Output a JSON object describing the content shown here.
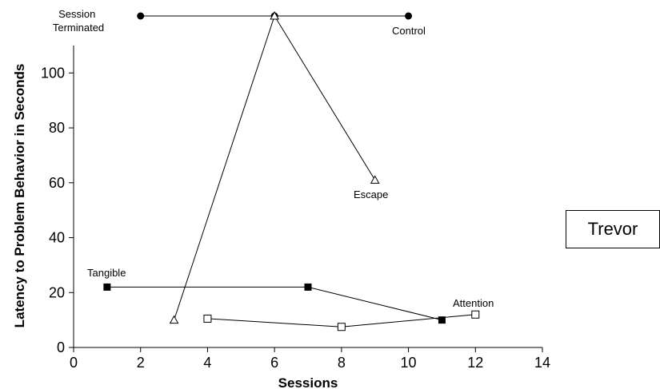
{
  "participant_label": "Trevor",
  "chart_data": {
    "type": "line",
    "xlabel": "Sessions",
    "ylabel": "Latency to Problem Behavior in Seconds",
    "xlim": [
      0,
      14
    ],
    "ylim": [
      0,
      110
    ],
    "xticks": [
      0,
      2,
      4,
      6,
      8,
      10,
      12,
      14
    ],
    "yticks": [
      0,
      20,
      40,
      60,
      80,
      100
    ],
    "grid": false,
    "legend": "none",
    "session_terminated_label": "Session Terminated",
    "series": [
      {
        "name": "Control",
        "marker": "filled-circle",
        "at_top": true,
        "x": [
          2,
          6,
          10
        ],
        "y": [
          null,
          null,
          null
        ]
      },
      {
        "name": "Escape",
        "marker": "open-triangle",
        "x": [
          3,
          6,
          9
        ],
        "y": [
          10,
          120,
          61
        ]
      },
      {
        "name": "Tangible",
        "marker": "filled-square",
        "x": [
          1,
          7,
          11
        ],
        "y": [
          22,
          22,
          10
        ]
      },
      {
        "name": "Attention",
        "marker": "open-square",
        "x": [
          4,
          8,
          12
        ],
        "y": [
          10.5,
          7.5,
          12
        ]
      }
    ]
  }
}
